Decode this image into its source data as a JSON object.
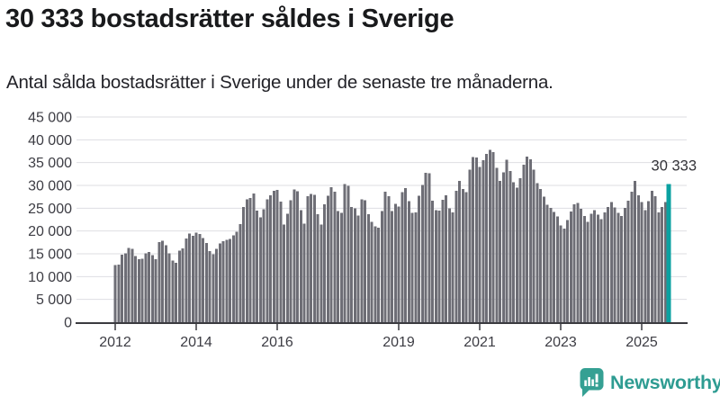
{
  "header": {
    "title": "30 333 bostadsrätter såldes i Sverige",
    "subtitle": "Antal sålda bostadsrätter i Sverige under de senaste tre månaderna."
  },
  "chart_data": {
    "type": "bar",
    "title": "30 333 bostadsrätter såldes i Sverige",
    "subtitle": "Antal sålda bostadsrätter i Sverige under de senaste tre månaderna.",
    "frequency": "monthly",
    "x_start": "2012-01",
    "x_end": "2025-09",
    "ylim": [
      0,
      45000
    ],
    "grid": true,
    "legend": "none",
    "bar_color": "#6e6e76",
    "highlight_color": "#0aa1a1",
    "annotation": {
      "label": "30 333",
      "value": 30333
    },
    "yticks": {
      "values": [
        0,
        5000,
        10000,
        15000,
        20000,
        25000,
        30000,
        35000,
        40000,
        45000
      ],
      "labels": [
        "0",
        "5 000",
        "10 000",
        "15 000",
        "20 000",
        "25 000",
        "30 000",
        "35 000",
        "40 000",
        "45 000"
      ]
    },
    "xticks": [
      {
        "label": "2012",
        "month_index": 0
      },
      {
        "label": "2014",
        "month_index": 24
      },
      {
        "label": "2016",
        "month_index": 48
      },
      {
        "label": "2019",
        "month_index": 84
      },
      {
        "label": "2021",
        "month_index": 108
      },
      {
        "label": "2023",
        "month_index": 132
      },
      {
        "label": "2025",
        "month_index": 156
      }
    ],
    "values": [
      12500,
      12600,
      14800,
      15100,
      16300,
      16100,
      14500,
      13800,
      13900,
      15100,
      15400,
      14700,
      13800,
      17600,
      17900,
      16900,
      15100,
      13500,
      13000,
      15700,
      16200,
      18400,
      19400,
      18900,
      19600,
      19300,
      18500,
      17400,
      15600,
      14900,
      16100,
      17300,
      17800,
      18100,
      18300,
      19000,
      19800,
      21500,
      25300,
      26900,
      27200,
      28200,
      24500,
      23000,
      24800,
      26900,
      27800,
      28800,
      29000,
      26400,
      21400,
      23800,
      26700,
      29100,
      28700,
      24600,
      21600,
      27600,
      28100,
      27900,
      23700,
      21400,
      25900,
      27700,
      29600,
      28600,
      24400,
      24000,
      30300,
      29900,
      25300,
      25000,
      23400,
      26900,
      26700,
      23700,
      22000,
      21000,
      20700,
      24400,
      28600,
      27600,
      24400,
      26000,
      25400,
      28500,
      29400,
      26500,
      24000,
      24100,
      27700,
      30100,
      32800,
      32700,
      26600,
      24600,
      24500,
      26800,
      27800,
      25000,
      24100,
      28800,
      31000,
      29200,
      28500,
      33500,
      36200,
      36100,
      34000,
      35500,
      36900,
      37800,
      37300,
      33800,
      31000,
      32900,
      35600,
      33200,
      30700,
      29500,
      31600,
      34500,
      36300,
      35700,
      33500,
      30500,
      29200,
      27500,
      25800,
      25100,
      24200,
      23200,
      21200,
      20500,
      22400,
      24300,
      25900,
      26200,
      24900,
      23300,
      22000,
      23800,
      24600,
      23600,
      22600,
      24100,
      25300,
      26300,
      25200,
      24000,
      23300,
      25100,
      26600,
      28600,
      31000,
      27800,
      26300,
      24600,
      26500,
      28800,
      27600,
      24100,
      25300,
      26300,
      30333
    ]
  },
  "footer": {
    "brand": "Newsworthy",
    "brand_color": "#2e9c92",
    "icon": "newsworthy-bubble-chart-icon",
    "icon_color": "#35a093"
  }
}
